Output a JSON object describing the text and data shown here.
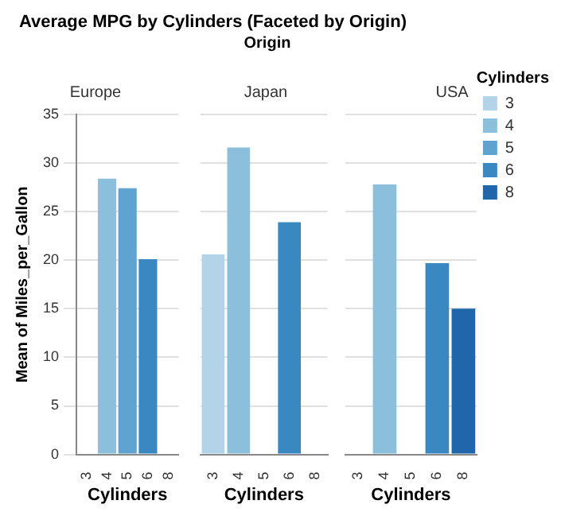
{
  "chart_data": [
    {
      "type": "other",
      "title": "Average MPG by Cylinders (Faceted by Origin)",
      "subtitle": "Origin"
    },
    {
      "type": "bar",
      "title": "Europe",
      "categories": [
        "3",
        "4",
        "5",
        "6",
        "8"
      ],
      "stacked": true,
      "ylim": [
        0,
        35
      ],
      "yticks": [
        0,
        5,
        10,
        15,
        20,
        25,
        30,
        35
      ],
      "ylabel": "Mean of Miles_per_Gallon",
      "xlabel": "Cylinders",
      "grid": "y",
      "series": [
        {
          "color": "#b3d3e8",
          "values": [
            null,
            null,
            null,
            null,
            null
          ]
        },
        {
          "color": "#8bbfdc",
          "values": [
            null,
            28.4,
            null,
            null,
            null
          ]
        },
        {
          "color": "#5fa4d0",
          "values": [
            null,
            null,
            27.4,
            null,
            null
          ]
        },
        {
          "color": "#3a88c2",
          "values": [
            null,
            null,
            null,
            20.1,
            null
          ]
        },
        {
          "color": "#1f66aa",
          "values": [
            null,
            null,
            null,
            null,
            null
          ]
        }
      ]
    },
    {
      "type": "bar",
      "title": "Japan",
      "categories": [
        "3",
        "4",
        "5",
        "6",
        "8"
      ],
      "stacked": true,
      "ylim": [
        0,
        35
      ],
      "yticks": [
        0,
        5,
        10,
        15,
        20,
        25,
        30,
        35
      ],
      "xlabel": "Cylinders",
      "grid": "y",
      "tick_labels": "x",
      "series": [
        {
          "color": "#b3d3e8",
          "values": [
            20.6,
            null,
            null,
            null,
            null
          ]
        },
        {
          "color": "#8bbfdc",
          "values": [
            null,
            31.6,
            null,
            null,
            null
          ]
        },
        {
          "color": "#5fa4d0",
          "values": [
            null,
            null,
            null,
            null,
            null
          ]
        },
        {
          "color": "#3a88c2",
          "values": [
            null,
            null,
            null,
            23.9,
            null
          ]
        },
        {
          "color": "#1f66aa",
          "values": [
            null,
            null,
            null,
            null,
            null
          ]
        }
      ]
    },
    {
      "type": "bar",
      "title": "USA",
      "categories": [
        "3",
        "4",
        "5",
        "6",
        "8"
      ],
      "stacked": true,
      "ylim": [
        0,
        35
      ],
      "yticks": [
        0,
        5,
        10,
        15,
        20,
        25,
        30,
        35
      ],
      "xlabel": "Cylinders",
      "grid": "y",
      "tick_labels": "x",
      "legend": "right",
      "legend_title": "Cylinders",
      "series": [
        {
          "name": "3",
          "color": "#b3d3e8",
          "values": [
            null,
            null,
            null,
            null,
            null
          ]
        },
        {
          "name": "4",
          "color": "#8bbfdc",
          "values": [
            null,
            27.8,
            null,
            null,
            null
          ]
        },
        {
          "name": "5",
          "color": "#5fa4d0",
          "values": [
            null,
            null,
            null,
            null,
            null
          ]
        },
        {
          "name": "6",
          "color": "#3a88c2",
          "values": [
            null,
            null,
            null,
            19.7,
            null
          ]
        },
        {
          "name": "8",
          "color": "#1f66aa",
          "values": [
            null,
            null,
            null,
            null,
            15.0
          ]
        }
      ]
    }
  ]
}
